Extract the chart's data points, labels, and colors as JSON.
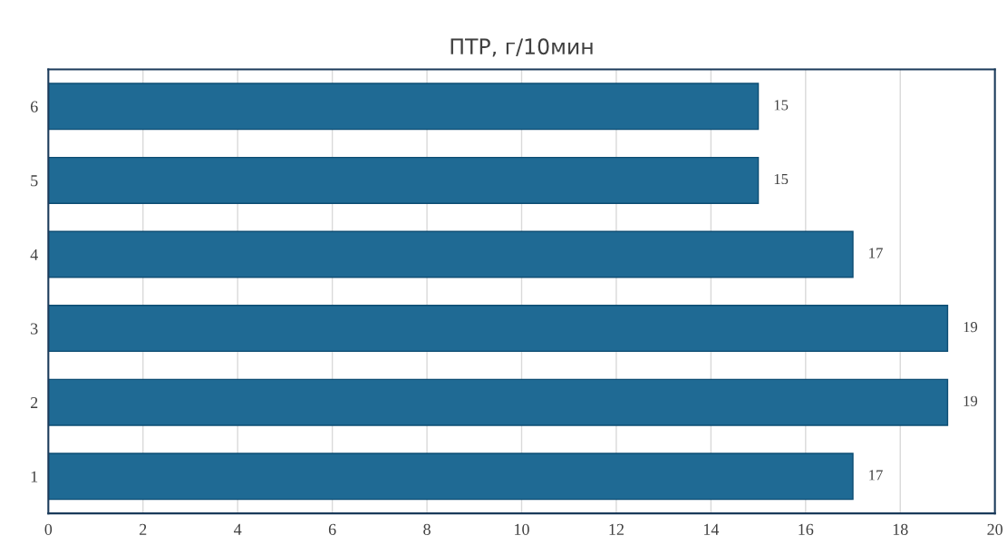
{
  "chart_data": {
    "type": "bar",
    "orientation": "horizontal",
    "title": "ПТР, г/10мин",
    "categories": [
      "6",
      "5",
      "4",
      "3",
      "2",
      "1"
    ],
    "values": [
      15,
      15,
      17,
      19,
      19,
      17
    ],
    "color": "#1f6a94",
    "xlim": [
      0,
      20
    ],
    "xticks": [
      0,
      2,
      4,
      6,
      8,
      10,
      12,
      14,
      16,
      18,
      20
    ],
    "grid": "x",
    "data_labels": true,
    "legend": false
  }
}
